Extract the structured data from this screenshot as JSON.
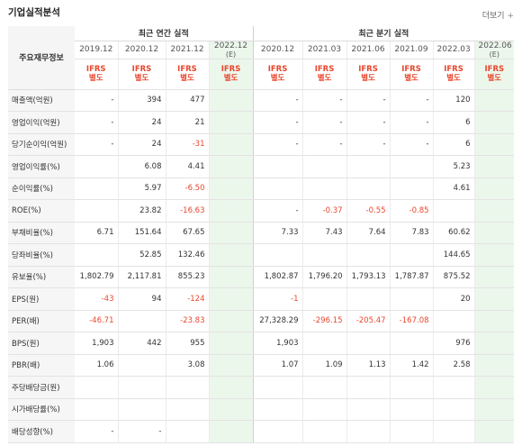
{
  "header": {
    "title": "기업실적분석",
    "more_label": "더보기",
    "more_mark": "+"
  },
  "table": {
    "row_header_label": "주요재무정보",
    "group_annual": "최근 연간 실적",
    "group_quarter": "최근 분기 실적",
    "annual_periods": [
      {
        "date": "2019.12",
        "est": ""
      },
      {
        "date": "2020.12",
        "est": ""
      },
      {
        "date": "2021.12",
        "est": ""
      },
      {
        "date": "2022.12",
        "est": "(E)"
      }
    ],
    "quarter_periods": [
      {
        "date": "2020.12",
        "est": ""
      },
      {
        "date": "2021.03",
        "est": ""
      },
      {
        "date": "2021.06",
        "est": ""
      },
      {
        "date": "2021.09",
        "est": ""
      },
      {
        "date": "2022.03",
        "est": ""
      },
      {
        "date": "2022.06",
        "est": "(E)"
      }
    ],
    "ifrs_line1": "IFRS",
    "ifrs_line2": "별도",
    "rows": [
      {
        "label": "매출액(억원)",
        "cells": [
          "-",
          "394",
          "477",
          "",
          "-",
          "-",
          "-",
          "-",
          "120",
          ""
        ]
      },
      {
        "label": "영업이익(억원)",
        "cells": [
          "-",
          "24",
          "21",
          "",
          "-",
          "-",
          "-",
          "-",
          "6",
          ""
        ]
      },
      {
        "label": "당기순이익(억원)",
        "cells": [
          "-",
          "24",
          "-31",
          "",
          "-",
          "-",
          "-",
          "-",
          "6",
          ""
        ]
      },
      {
        "label": "영업이익률(%)",
        "cells": [
          "",
          "6.08",
          "4.41",
          "",
          "",
          "",
          "",
          "",
          "5.23",
          ""
        ]
      },
      {
        "label": "순이익률(%)",
        "cells": [
          "",
          "5.97",
          "-6.50",
          "",
          "",
          "",
          "",
          "",
          "4.61",
          ""
        ]
      },
      {
        "label": "ROE(%)",
        "cells": [
          "",
          "23.82",
          "-16.63",
          "",
          "-",
          "-0.37",
          "-0.55",
          "-0.85",
          "",
          ""
        ]
      },
      {
        "label": "부채비율(%)",
        "cells": [
          "6.71",
          "151.64",
          "67.65",
          "",
          "7.33",
          "7.43",
          "7.64",
          "7.83",
          "60.62",
          ""
        ]
      },
      {
        "label": "당좌비율(%)",
        "cells": [
          "",
          "52.85",
          "132.46",
          "",
          "",
          "",
          "",
          "",
          "144.65",
          ""
        ]
      },
      {
        "label": "유보율(%)",
        "cells": [
          "1,802.79",
          "2,117.81",
          "855.23",
          "",
          "1,802.87",
          "1,796.20",
          "1,793.13",
          "1,787.87",
          "875.52",
          ""
        ]
      },
      {
        "label": "EPS(원)",
        "cells": [
          "-43",
          "94",
          "-124",
          "",
          "-1",
          "",
          "",
          "",
          "20",
          ""
        ]
      },
      {
        "label": "PER(배)",
        "cells": [
          "-46.71",
          "",
          "-23.83",
          "",
          "27,328.29",
          "-296.15",
          "-205.47",
          "-167.08",
          "",
          ""
        ]
      },
      {
        "label": "BPS(원)",
        "cells": [
          "1,903",
          "442",
          "955",
          "",
          "1,903",
          "",
          "",
          "",
          "976",
          ""
        ]
      },
      {
        "label": "PBR(배)",
        "cells": [
          "1.06",
          "",
          "3.08",
          "",
          "1.07",
          "1.09",
          "1.13",
          "1.42",
          "2.58",
          ""
        ]
      },
      {
        "label": "주당배당금(원)",
        "cells": [
          "",
          "",
          "",
          "",
          "",
          "",
          "",
          "",
          "",
          ""
        ]
      },
      {
        "label": "시가배당률(%)",
        "cells": [
          "",
          "",
          "",
          "",
          "",
          "",
          "",
          "",
          "",
          ""
        ]
      },
      {
        "label": "배당성향(%)",
        "cells": [
          "-",
          "-",
          "",
          "",
          "",
          "",
          "",
          "",
          "",
          ""
        ]
      }
    ]
  },
  "colors": {
    "negative": "#e8472d",
    "estimate_bg": "#ecf7ec",
    "ifrs": "#e8472d"
  }
}
